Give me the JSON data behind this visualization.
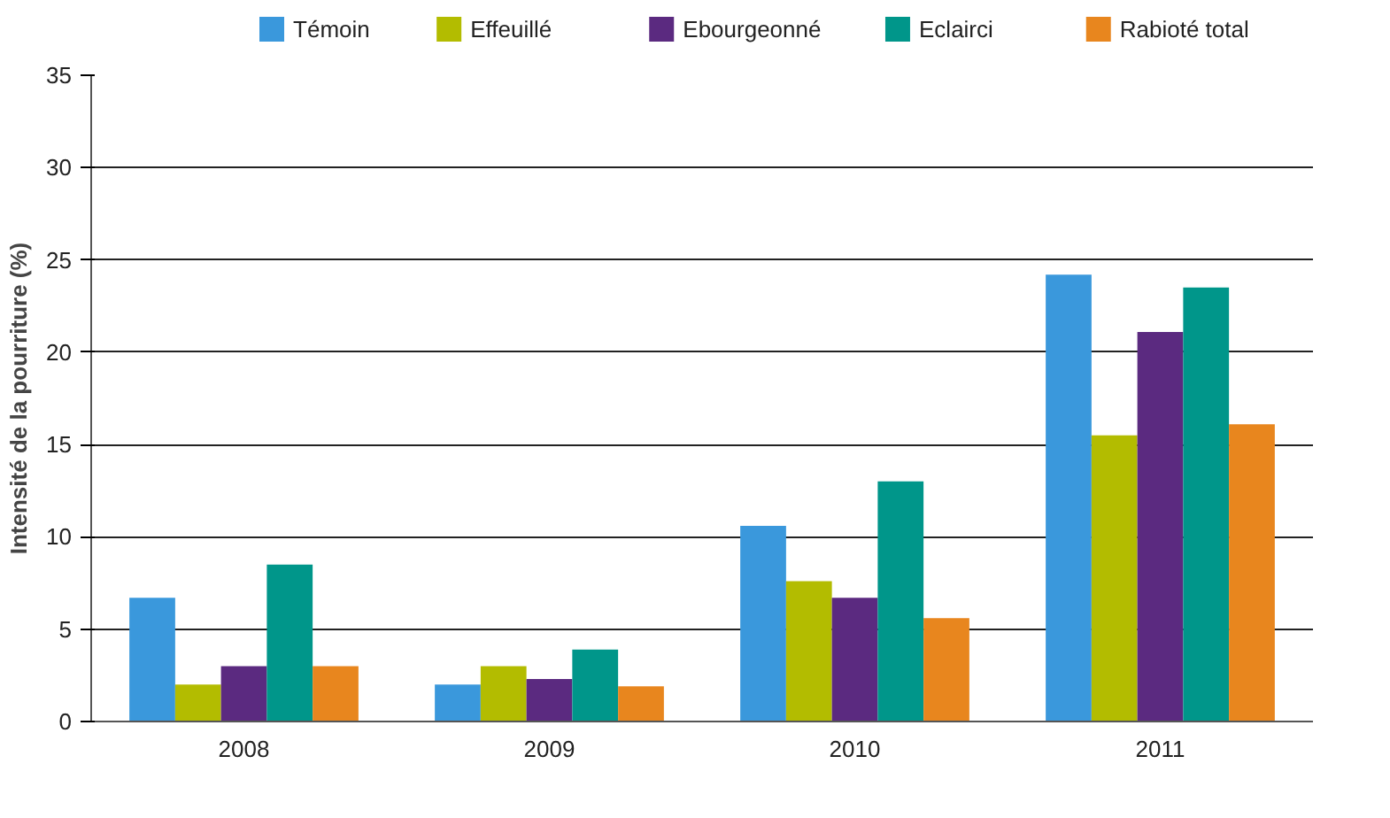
{
  "chart_data": {
    "type": "bar",
    "ylabel": "Intensité de la pourriture (%)",
    "categories": [
      "2008",
      "2009",
      "2010",
      "2011"
    ],
    "series": [
      {
        "name": "Témoin",
        "color": "#3a98dc",
        "values": [
          6.7,
          2.0,
          10.6,
          24.2
        ]
      },
      {
        "name": "Effeuillé",
        "color": "#b3bc00",
        "values": [
          2.0,
          3.0,
          7.6,
          15.5
        ]
      },
      {
        "name": "Ebourgeonné",
        "color": "#5b2a80",
        "values": [
          3.0,
          2.3,
          6.7,
          21.1
        ]
      },
      {
        "name": "Eclairci",
        "color": "#00968a",
        "values": [
          8.5,
          3.9,
          13.0,
          23.5
        ]
      },
      {
        "name": "Rabioté total",
        "color": "#e8861e",
        "values": [
          3.0,
          1.9,
          5.6,
          16.1
        ]
      }
    ],
    "ylim": [
      0,
      35
    ],
    "yticks": [
      0,
      5,
      10,
      15,
      20,
      25,
      30,
      35
    ],
    "grid": "y",
    "legend": "top"
  }
}
